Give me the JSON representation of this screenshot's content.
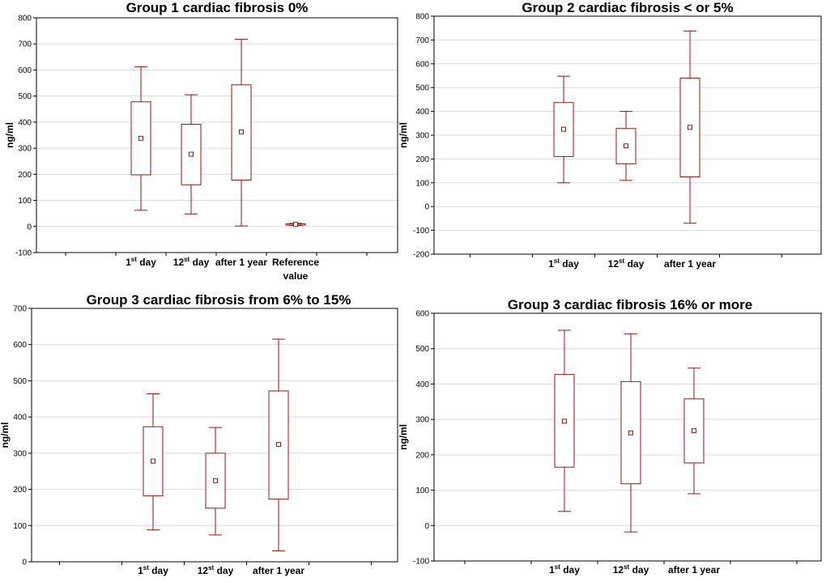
{
  "page": {
    "background": "#ffffff"
  },
  "style": {
    "box_color": "#8b1a1a",
    "grid_color": "#d9d9d9",
    "plot_bg": "#ffffff"
  },
  "chart_data": [
    {
      "type": "box",
      "title": "Group 1 cardiac fibrosis 0%",
      "ylabel": "ng/ml",
      "ylim": [
        -100,
        800
      ],
      "yticks": [
        "-100",
        "0",
        "100",
        "200",
        "300",
        "400",
        "500",
        "600",
        "700",
        "800"
      ],
      "categories": [
        {
          "main": "1",
          "sup": "st",
          "rest": " day"
        },
        {
          "main": "12",
          "sup": "st",
          "rest": " day"
        },
        {
          "main": "after 1 year"
        },
        {
          "main": "Reference",
          "line2": "value"
        }
      ],
      "boxes": [
        {
          "min": 62,
          "q1": 198,
          "median": 338,
          "q3": 478,
          "max": 612
        },
        {
          "min": 48,
          "q1": 160,
          "median": 277,
          "q3": 392,
          "max": 505
        },
        {
          "min": 2,
          "q1": 178,
          "median": 363,
          "q3": 543,
          "max": 718
        },
        {
          "min": 4,
          "q1": 6,
          "median": 8,
          "q3": 10,
          "max": 12
        }
      ]
    },
    {
      "type": "box",
      "title": "Group 2 cardiac fibrosis < or 5%",
      "ylabel": "ng/ml",
      "ylim": [
        -200,
        800
      ],
      "yticks": [
        "-200",
        "-100",
        "0",
        "100",
        "200",
        "300",
        "400",
        "500",
        "600",
        "700",
        "800"
      ],
      "categories": [
        {
          "main": "1",
          "sup": "st",
          "rest": " day"
        },
        {
          "main": "12",
          "sup": "st",
          "rest": " day"
        },
        {
          "main": "after 1 year"
        }
      ],
      "boxes": [
        {
          "min": 100,
          "q1": 210,
          "median": 325,
          "q3": 437,
          "max": 548
        },
        {
          "min": 110,
          "q1": 180,
          "median": 255,
          "q3": 328,
          "max": 400
        },
        {
          "min": -70,
          "q1": 125,
          "median": 333,
          "q3": 540,
          "max": 738
        }
      ]
    },
    {
      "type": "box",
      "title": "Group 3 cardiac fibrosis from 6% to 15%",
      "ylabel": "ng/ml",
      "ylim": [
        0,
        700
      ],
      "yticks": [
        "0",
        "100",
        "200",
        "300",
        "400",
        "500",
        "600",
        "700"
      ],
      "categories": [
        {
          "main": "1",
          "sup": "st",
          "rest": " day"
        },
        {
          "main": "12",
          "sup": "st",
          "rest": " day"
        },
        {
          "main": "after 1 year"
        }
      ],
      "boxes": [
        {
          "min": 88,
          "q1": 182,
          "median": 278,
          "q3": 373,
          "max": 464
        },
        {
          "min": 74,
          "q1": 148,
          "median": 224,
          "q3": 300,
          "max": 371
        },
        {
          "min": 30,
          "q1": 173,
          "median": 324,
          "q3": 472,
          "max": 615
        }
      ]
    },
    {
      "type": "box",
      "title": "Group 3 cardiac fibrosis 16% or more",
      "ylabel": "ng/ml",
      "ylim": [
        -100,
        600
      ],
      "yticks": [
        "-100",
        "0",
        "100",
        "200",
        "300",
        "400",
        "500",
        "600"
      ],
      "categories": [
        {
          "main": "1",
          "sup": "st",
          "rest": " day"
        },
        {
          "main": "12",
          "sup": "st",
          "rest": " day"
        },
        {
          "main": "after 1 year"
        }
      ],
      "boxes": [
        {
          "min": 40,
          "q1": 165,
          "median": 295,
          "q3": 427,
          "max": 552
        },
        {
          "min": -18,
          "q1": 118,
          "median": 262,
          "q3": 407,
          "max": 542
        },
        {
          "min": 90,
          "q1": 177,
          "median": 268,
          "q3": 358,
          "max": 445
        }
      ]
    }
  ]
}
